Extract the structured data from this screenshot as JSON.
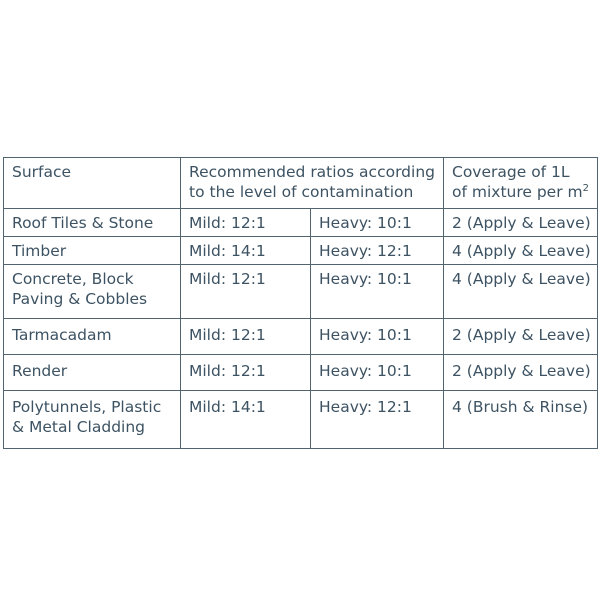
{
  "table": {
    "headers": {
      "surface": "Surface",
      "ratios_line1": "Recommended ratios according",
      "ratios_line2": "to the level of contamination",
      "coverage_line1": "Coverage of 1L",
      "coverage_line2": "of mixture per m",
      "coverage_sup": "2"
    },
    "rows": [
      {
        "surface_line1": "Roof Tiles & Stone",
        "surface_line2": "",
        "mild": "Mild: 12:1",
        "heavy": "Heavy: 10:1",
        "coverage": "2 (Apply & Leave)"
      },
      {
        "surface_line1": "Timber",
        "surface_line2": "",
        "mild": "Mild: 14:1",
        "heavy": "Heavy: 12:1",
        "coverage": "4 (Apply & Leave)"
      },
      {
        "surface_line1": "Concrete, Block",
        "surface_line2": "Paving & Cobbles",
        "mild": "Mild: 12:1",
        "heavy": "Heavy: 10:1",
        "coverage": "4 (Apply & Leave)"
      },
      {
        "surface_line1": "Tarmacadam",
        "surface_line2": "",
        "mild": "Mild: 12:1",
        "heavy": "Heavy: 10:1",
        "coverage": "2 (Apply & Leave)"
      },
      {
        "surface_line1": "Render",
        "surface_line2": "",
        "mild": "Mild: 12:1",
        "heavy": "Heavy: 10:1",
        "coverage": "2 (Apply & Leave)"
      },
      {
        "surface_line1": "Polytunnels, Plastic",
        "surface_line2": "& Metal Cladding",
        "mild": "Mild: 14:1",
        "heavy": "Heavy: 12:1",
        "coverage": "4 (Brush & Rinse)"
      }
    ]
  }
}
